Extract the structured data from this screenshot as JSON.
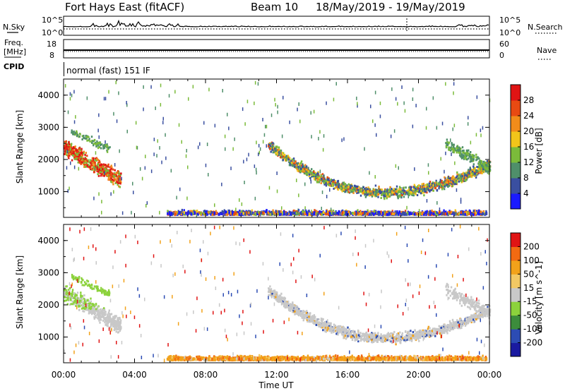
{
  "header": {
    "title": "Fort Hays East (fitACF)",
    "beam_label": "Beam 10",
    "date_range": "18/May/2019 - 19/May/2019"
  },
  "side_labels": {
    "nsky": "N.Sky",
    "freq": "Freq.",
    "freq_unit": "[MHz]",
    "cpid": "CPID",
    "nsearch": "N.Search",
    "nave": "Nave"
  },
  "cpid_text": "normal (fast) 151 IF",
  "colors": {
    "power": [
      "#1a1aff",
      "#3a4fa0",
      "#4f8f6a",
      "#7bbb3a",
      "#f2c51a",
      "#f28c1a",
      "#e84a12",
      "#e01414"
    ],
    "velocity": [
      "#e01414",
      "#f26a12",
      "#f2a21a",
      "#f2c864",
      "#c8c8c8",
      "#8cd23c",
      "#3c8c3c",
      "#2c4cb4",
      "#1a1aa0"
    ]
  },
  "chart_data": [
    {
      "type": "line",
      "name": "nsky-nsearch",
      "y_axis_left_ticks": [
        "10^5",
        "10^0"
      ],
      "y_axis_right_ticks": [
        "10^5",
        "10^0"
      ]
    },
    {
      "type": "line",
      "name": "freq-nave",
      "y_axis_left_ticks": [
        "18",
        "8"
      ],
      "y_axis_right_ticks": [
        "60",
        "0"
      ],
      "freq_value_mhz": 10
    },
    {
      "type": "heatmap",
      "name": "power",
      "ylabel": "Slant Range [km]",
      "yticks": [
        1000,
        2000,
        3000,
        4000
      ],
      "ylim": [
        200,
        4500
      ],
      "colorbar_label": "Power [dB]",
      "colorbar_ticks": [
        "4",
        "8",
        "12",
        "16",
        "20",
        "24",
        "28"
      ],
      "colorbar_range": [
        0,
        30
      ]
    },
    {
      "type": "heatmap",
      "name": "velocity",
      "ylabel": "Slant Range [km]",
      "yticks": [
        1000,
        2000,
        3000,
        4000
      ],
      "ylim": [
        200,
        4500
      ],
      "colorbar_label": "Velocity [m s^-1]",
      "colorbar_ticks": [
        "200",
        "100",
        "50",
        "15",
        "-15",
        "-50",
        "-100",
        "-200"
      ]
    }
  ],
  "x_axis": {
    "label": "Time UT",
    "ticks": [
      "00:00",
      "04:00",
      "08:00",
      "12:00",
      "16:00",
      "20:00",
      "00:00"
    ],
    "range_hours": [
      0,
      24
    ]
  }
}
